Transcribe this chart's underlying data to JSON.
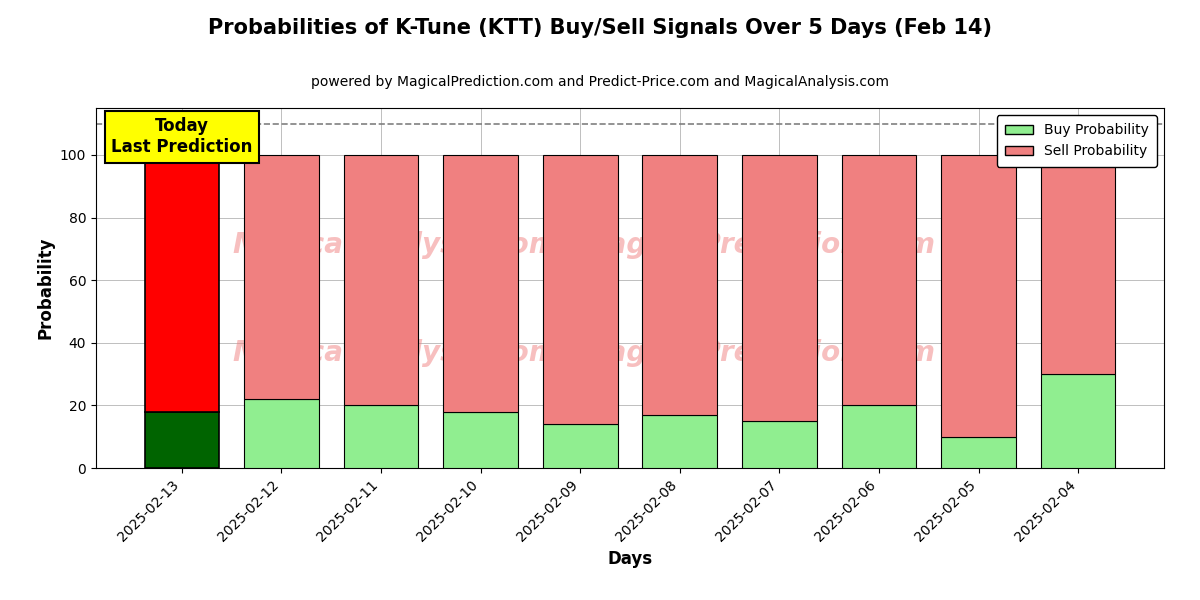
{
  "title": "Probabilities of K-Tune (KTT) Buy/Sell Signals Over 5 Days (Feb 14)",
  "subtitle": "powered by MagicalPrediction.com and Predict-Price.com and MagicalAnalysis.com",
  "xlabel": "Days",
  "ylabel": "Probability",
  "categories": [
    "2025-02-13",
    "2025-02-12",
    "2025-02-11",
    "2025-02-10",
    "2025-02-09",
    "2025-02-08",
    "2025-02-07",
    "2025-02-06",
    "2025-02-05",
    "2025-02-04"
  ],
  "buy_values": [
    18,
    22,
    20,
    18,
    14,
    17,
    15,
    20,
    10,
    30
  ],
  "sell_values": [
    82,
    78,
    80,
    82,
    86,
    83,
    85,
    80,
    90,
    70
  ],
  "buy_color_today": "#006400",
  "sell_color_today": "#ff0000",
  "buy_color_normal": "#90EE90",
  "sell_color_normal": "#F08080",
  "today_label_bg": "#ffff00",
  "today_label_text": "Today\nLast Prediction",
  "legend_buy": "Buy Probability",
  "legend_sell": "Sell Probability",
  "ylim": [
    0,
    115
  ],
  "yticks": [
    0,
    20,
    40,
    60,
    80,
    100
  ],
  "dashed_line_y": 110,
  "bar_width": 0.75,
  "title_fontsize": 15,
  "subtitle_fontsize": 10,
  "axis_label_fontsize": 12
}
